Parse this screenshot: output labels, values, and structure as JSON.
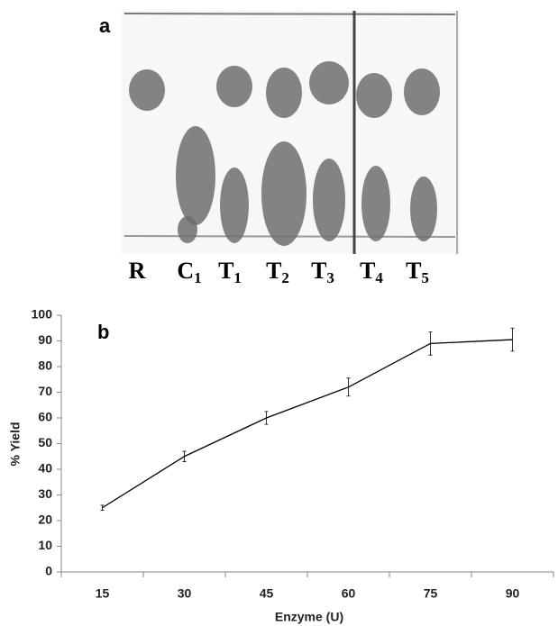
{
  "panel_a": {
    "label": "a",
    "lanes": [
      {
        "letter": "R"
      },
      {
        "letter": "C",
        "subscript": "1"
      },
      {
        "letter": "T",
        "subscript": "1"
      },
      {
        "letter": "T",
        "subscript": "2"
      },
      {
        "letter": "T",
        "subscript": "3"
      },
      {
        "letter": "T",
        "subscript": "4"
      },
      {
        "letter": "T",
        "subscript": "5"
      }
    ]
  },
  "chart_data": {
    "type": "line",
    "panel_label": "b",
    "x_label": "Enzyme (U)",
    "y_label": "% Yield",
    "categories": [
      "15",
      "30",
      "45",
      "60",
      "75",
      "90"
    ],
    "series": [
      {
        "name": "% Yield",
        "color": "#000000",
        "values": [
          25,
          45,
          60,
          72,
          89,
          90.5
        ],
        "errors": [
          1,
          2,
          2.5,
          3.5,
          4.5,
          4.5
        ]
      }
    ],
    "ylim": [
      0,
      100
    ],
    "yticks": [
      0,
      10,
      20,
      30,
      40,
      50,
      60,
      70,
      80,
      90,
      100
    ],
    "grid": false
  }
}
